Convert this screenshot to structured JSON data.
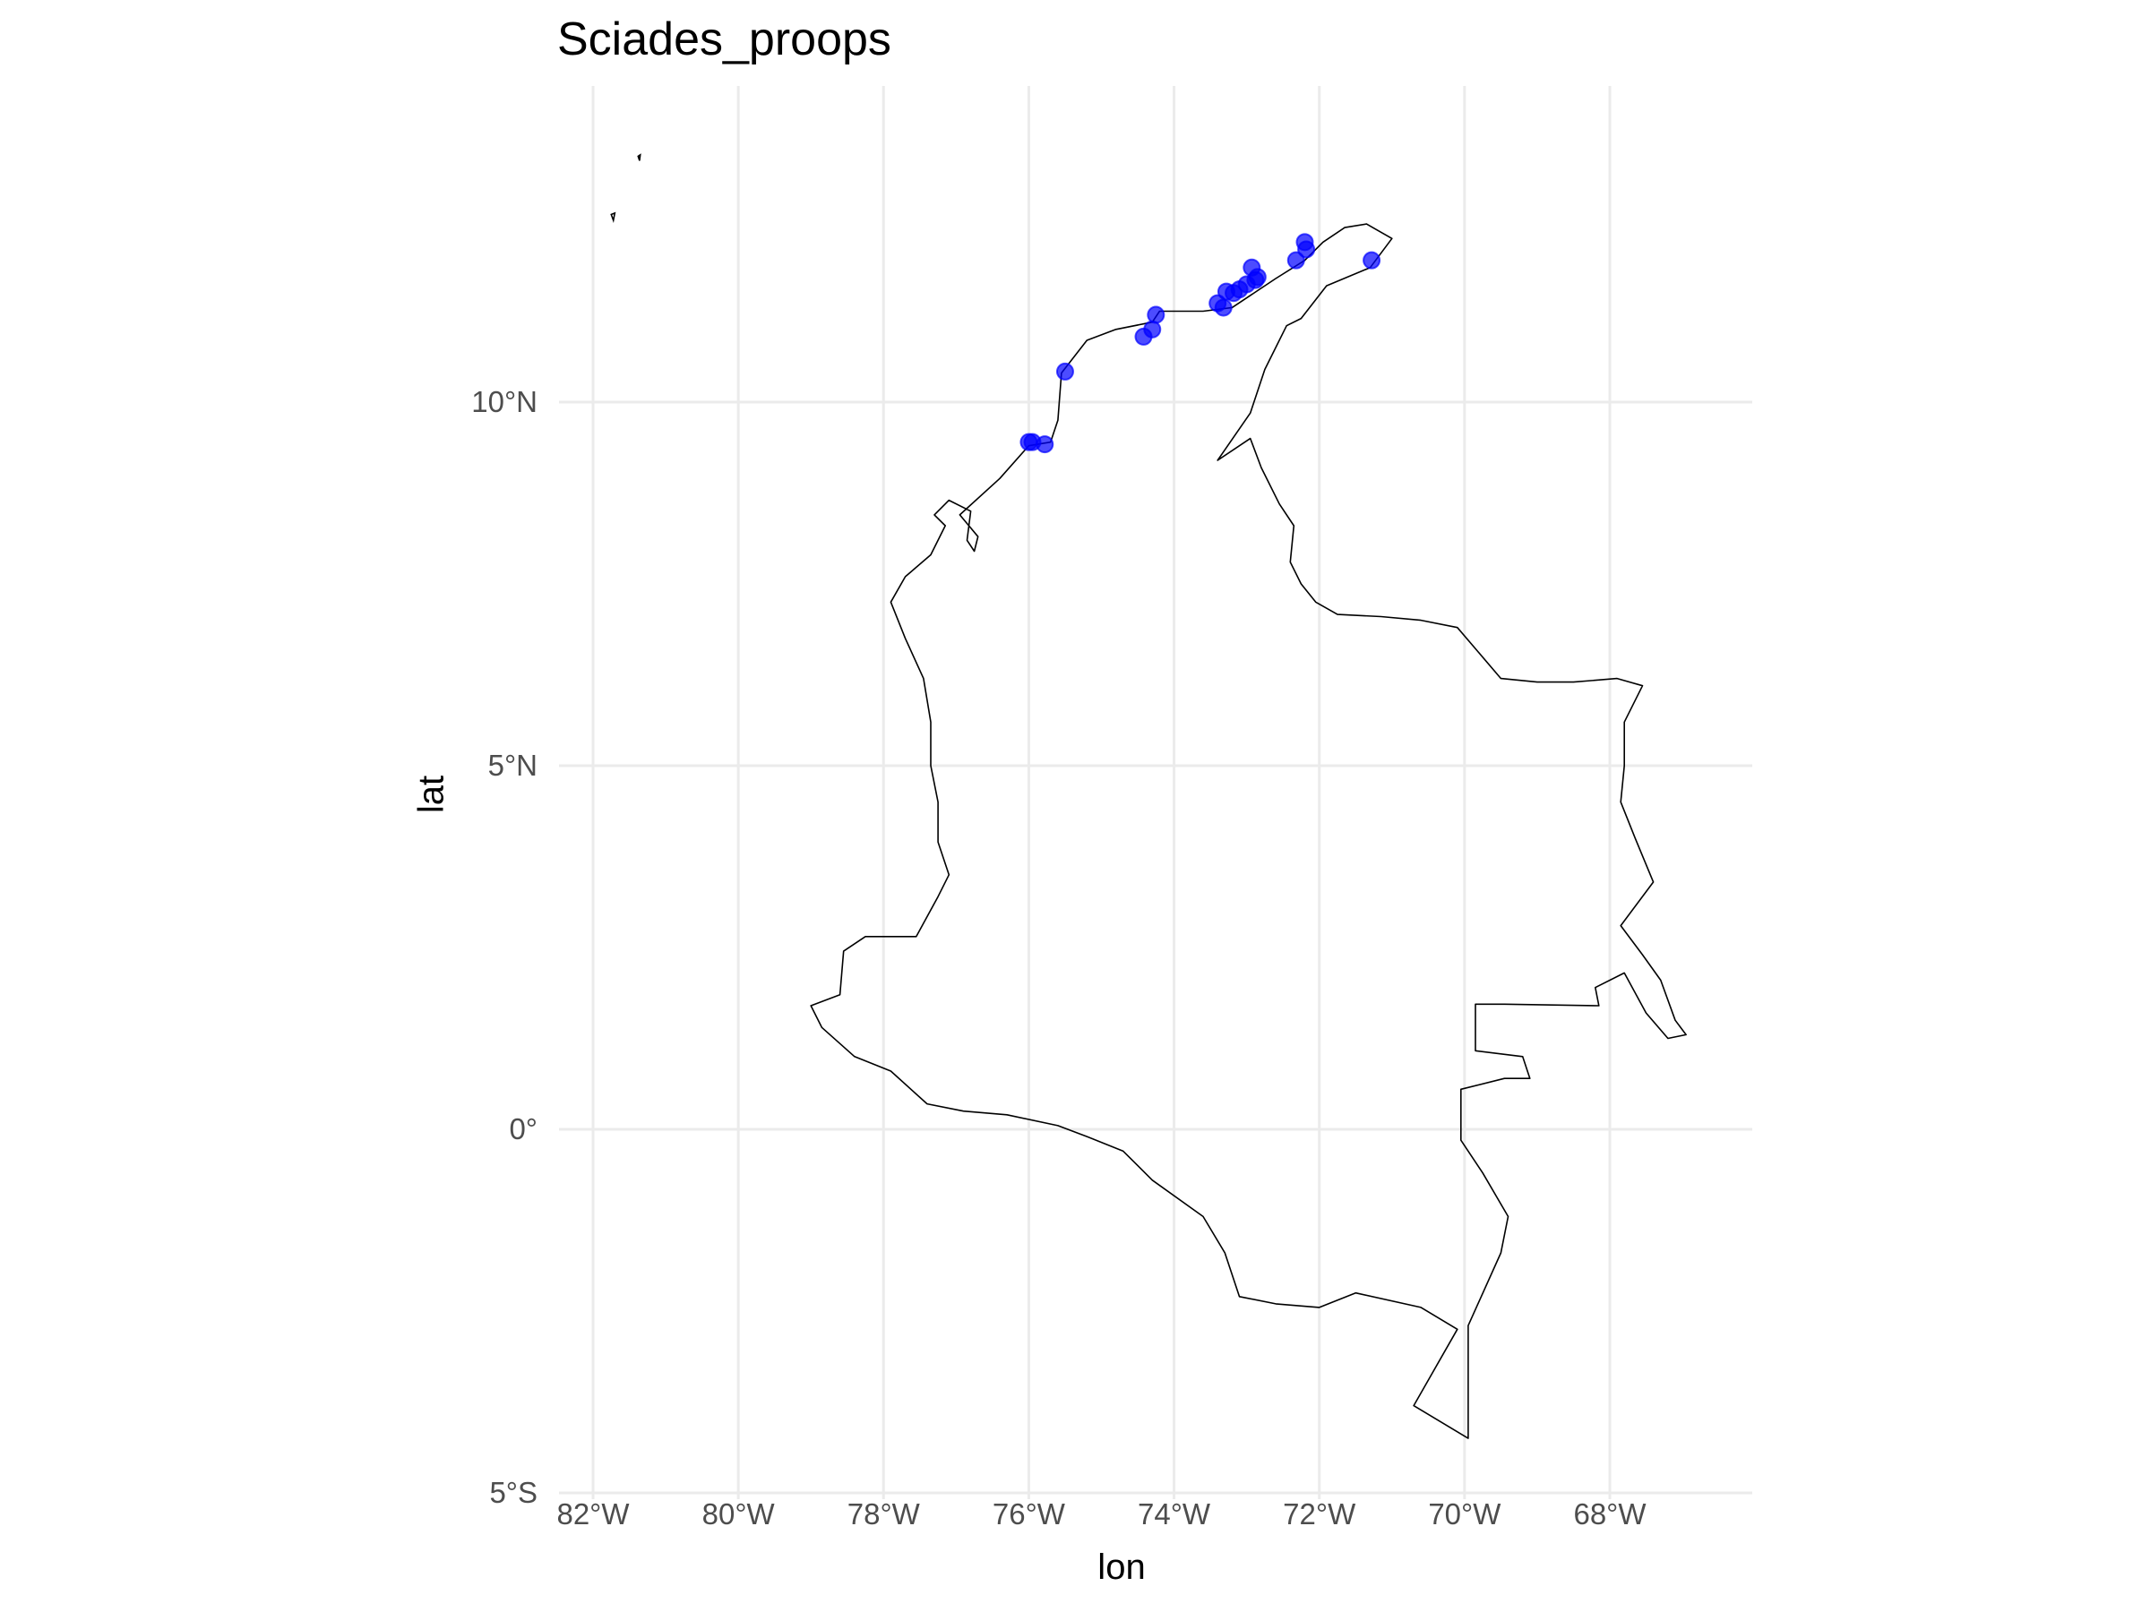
{
  "title": "Sciades_proops",
  "chart_data": {
    "type": "scatter",
    "title": "Sciades_proops",
    "xlabel": "lon",
    "ylabel": "lat",
    "xlim": [
      -82.2,
      -66.3
    ],
    "ylim": [
      -5,
      14.3
    ],
    "x_ticks": [
      {
        "value": -82,
        "label": "82°W"
      },
      {
        "value": -80,
        "label": "80°W"
      },
      {
        "value": -78,
        "label": "78°W"
      },
      {
        "value": -76,
        "label": "76°W"
      },
      {
        "value": -74,
        "label": "74°W"
      },
      {
        "value": -72,
        "label": "72°W"
      },
      {
        "value": -70,
        "label": "70°W"
      },
      {
        "value": -68,
        "label": "68°W"
      }
    ],
    "y_ticks": [
      {
        "value": 10,
        "label": "10°N"
      },
      {
        "value": 5,
        "label": "5°N"
      },
      {
        "value": 0,
        "label": "0°"
      },
      {
        "value": -5,
        "label": "5°S"
      }
    ],
    "grid": true,
    "point_color": "#0000ff",
    "outline_color": "#000000",
    "points": [
      {
        "lon": -71.28,
        "lat": 11.95
      },
      {
        "lon": -72.2,
        "lat": 12.2
      },
      {
        "lon": -72.18,
        "lat": 12.1
      },
      {
        "lon": -72.32,
        "lat": 11.95
      },
      {
        "lon": -72.85,
        "lat": 11.72
      },
      {
        "lon": -72.93,
        "lat": 11.85
      },
      {
        "lon": -72.88,
        "lat": 11.68
      },
      {
        "lon": -73.0,
        "lat": 11.62
      },
      {
        "lon": -73.1,
        "lat": 11.55
      },
      {
        "lon": -73.18,
        "lat": 11.5
      },
      {
        "lon": -73.28,
        "lat": 11.52
      },
      {
        "lon": -73.32,
        "lat": 11.3
      },
      {
        "lon": -73.4,
        "lat": 11.36
      },
      {
        "lon": -74.25,
        "lat": 11.2
      },
      {
        "lon": -74.3,
        "lat": 11.0
      },
      {
        "lon": -74.42,
        "lat": 10.9
      },
      {
        "lon": -75.5,
        "lat": 10.42
      },
      {
        "lon": -75.78,
        "lat": 9.42
      },
      {
        "lon": -75.95,
        "lat": 9.45
      },
      {
        "lon": -76.0,
        "lat": 9.45
      }
    ],
    "outline": [
      [
        -71.35,
        12.45
      ],
      [
        -71.0,
        12.25
      ],
      [
        -71.3,
        11.85
      ],
      [
        -71.9,
        11.6
      ],
      [
        -72.25,
        11.15
      ],
      [
        -72.45,
        11.05
      ],
      [
        -72.75,
        10.45
      ],
      [
        -72.95,
        9.85
      ],
      [
        -73.4,
        9.2
      ],
      [
        -72.95,
        9.5
      ],
      [
        -72.8,
        9.1
      ],
      [
        -72.55,
        8.6
      ],
      [
        -72.35,
        8.3
      ],
      [
        -72.4,
        7.8
      ],
      [
        -72.25,
        7.5
      ],
      [
        -72.05,
        7.25
      ],
      [
        -71.75,
        7.08
      ],
      [
        -71.15,
        7.05
      ],
      [
        -70.6,
        7.0
      ],
      [
        -70.1,
        6.9
      ],
      [
        -69.5,
        6.2
      ],
      [
        -69.0,
        6.15
      ],
      [
        -68.5,
        6.15
      ],
      [
        -67.9,
        6.2
      ],
      [
        -67.55,
        6.1
      ],
      [
        -67.8,
        5.6
      ],
      [
        -67.8,
        5.0
      ],
      [
        -67.85,
        4.5
      ],
      [
        -67.65,
        4.0
      ],
      [
        -67.4,
        3.4
      ],
      [
        -67.85,
        2.8
      ],
      [
        -67.55,
        2.4
      ],
      [
        -67.3,
        2.05
      ],
      [
        -67.1,
        1.5
      ],
      [
        -66.95,
        1.3
      ],
      [
        -67.2,
        1.25
      ],
      [
        -67.5,
        1.6
      ],
      [
        -67.8,
        2.15
      ],
      [
        -68.2,
        1.95
      ],
      [
        -68.15,
        1.7
      ],
      [
        -69.45,
        1.72
      ],
      [
        -69.85,
        1.72
      ],
      [
        -69.85,
        1.08
      ],
      [
        -69.2,
        1.0
      ],
      [
        -69.1,
        0.7
      ],
      [
        -69.45,
        0.7
      ],
      [
        -70.05,
        0.55
      ],
      [
        -70.05,
        -0.15
      ],
      [
        -69.75,
        -0.6
      ],
      [
        -69.4,
        -1.2
      ],
      [
        -69.5,
        -1.7
      ],
      [
        -69.95,
        -2.7
      ],
      [
        -69.95,
        -4.25
      ],
      [
        -70.7,
        -3.8
      ],
      [
        -70.1,
        -2.75
      ],
      [
        -70.6,
        -2.45
      ],
      [
        -71.5,
        -2.25
      ],
      [
        -72.0,
        -2.45
      ],
      [
        -72.6,
        -2.4
      ],
      [
        -73.1,
        -2.3
      ],
      [
        -73.3,
        -1.7
      ],
      [
        -73.6,
        -1.2
      ],
      [
        -74.3,
        -0.7
      ],
      [
        -74.7,
        -0.3
      ],
      [
        -75.2,
        -0.1
      ],
      [
        -75.6,
        0.05
      ],
      [
        -76.3,
        0.2
      ],
      [
        -76.9,
        0.25
      ],
      [
        -77.4,
        0.35
      ],
      [
        -77.9,
        0.8
      ],
      [
        -78.4,
        1.0
      ],
      [
        -78.85,
        1.4
      ],
      [
        -79.0,
        1.7
      ],
      [
        -78.6,
        1.85
      ],
      [
        -78.55,
        2.45
      ],
      [
        -78.25,
        2.65
      ],
      [
        -77.55,
        2.65
      ],
      [
        -77.25,
        3.2
      ],
      [
        -77.1,
        3.5
      ],
      [
        -77.25,
        3.95
      ],
      [
        -77.25,
        4.5
      ],
      [
        -77.35,
        5.0
      ],
      [
        -77.35,
        5.6
      ],
      [
        -77.45,
        6.2
      ],
      [
        -77.7,
        6.75
      ],
      [
        -77.9,
        7.25
      ],
      [
        -77.7,
        7.6
      ],
      [
        -77.35,
        7.9
      ],
      [
        -77.15,
        8.3
      ],
      [
        -77.3,
        8.45
      ],
      [
        -77.1,
        8.65
      ],
      [
        -76.8,
        8.5
      ],
      [
        -76.85,
        8.1
      ],
      [
        -76.75,
        7.95
      ],
      [
        -76.7,
        8.15
      ],
      [
        -76.95,
        8.45
      ],
      [
        -76.4,
        8.95
      ],
      [
        -76.0,
        9.4
      ],
      [
        -75.7,
        9.45
      ],
      [
        -75.6,
        9.75
      ],
      [
        -75.55,
        10.4
      ],
      [
        -75.2,
        10.85
      ],
      [
        -74.8,
        11.0
      ],
      [
        -74.3,
        11.1
      ],
      [
        -74.2,
        11.25
      ],
      [
        -73.6,
        11.25
      ],
      [
        -73.2,
        11.3
      ],
      [
        -72.6,
        11.7
      ],
      [
        -72.2,
        11.95
      ],
      [
        -71.95,
        12.2
      ],
      [
        -71.65,
        12.4
      ],
      [
        -71.35,
        12.45
      ]
    ],
    "islands": [
      [
        [
          -81.75,
          12.58
        ],
        [
          -81.72,
          12.5
        ],
        [
          -81.7,
          12.6
        ]
      ],
      [
        [
          -81.38,
          13.38
        ],
        [
          -81.36,
          13.32
        ],
        [
          -81.35,
          13.4
        ]
      ]
    ]
  }
}
